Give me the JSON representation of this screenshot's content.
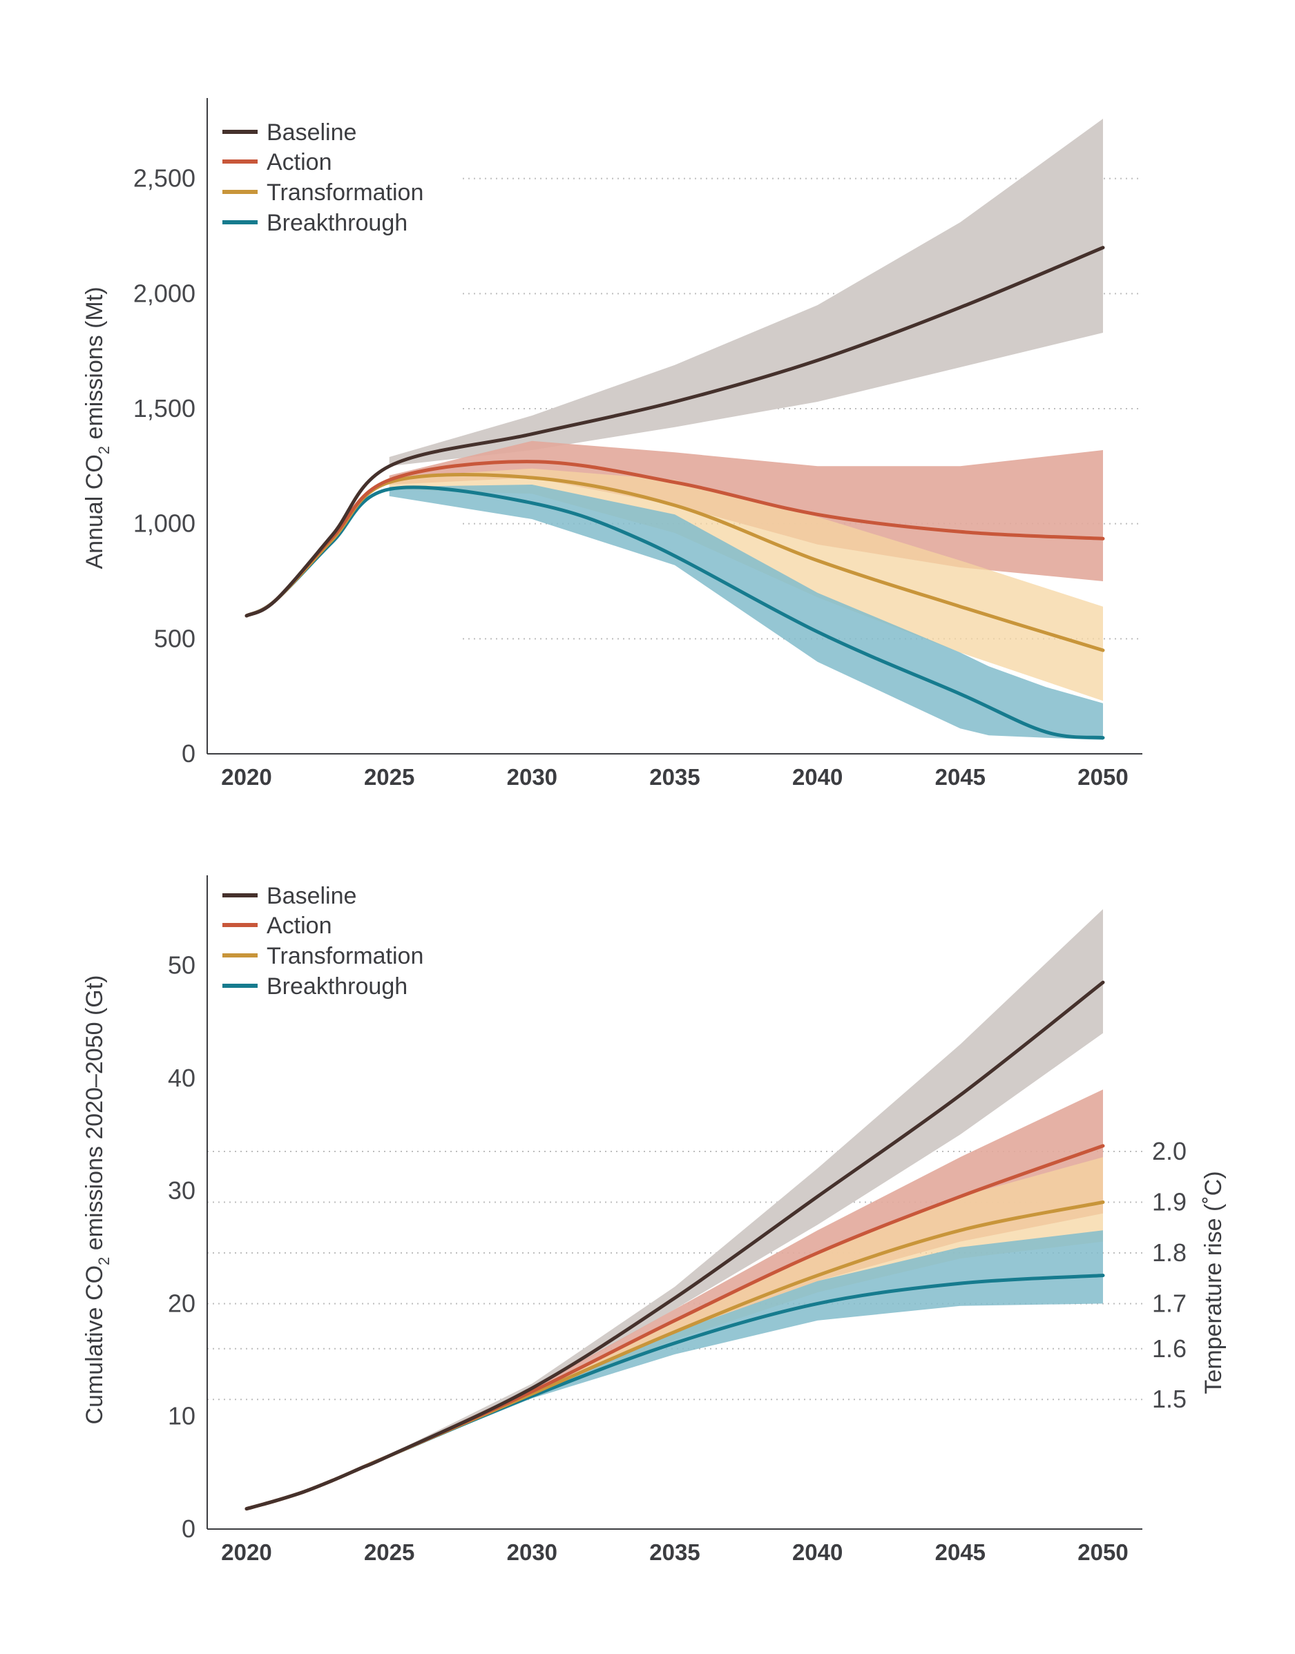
{
  "colors": {
    "baseline": "#45312c",
    "action": "#c8573a",
    "transformation": "#c8953a",
    "breakthrough": "#167b8e",
    "baseline_band": "#d2ccc9",
    "action_band": "#e2a89b",
    "transformation_band": "#f5d6a1",
    "breakthrough_band": "#83bccb",
    "overlap_band": "#e9ab6e"
  },
  "chart_data": [
    {
      "type": "line",
      "subtype": "line-with-uncertainty-bands",
      "title": "",
      "ylabel": "Annual CO2 emissions (Mt)",
      "ylabel_parts": {
        "pre": "Annual CO",
        "sub": "2",
        "post": " emissions (Mt)"
      },
      "xlabel": "",
      "xlim": [
        2020,
        2050
      ],
      "ylim": [
        0,
        2850
      ],
      "xticks": [
        "2020",
        "2025",
        "2030",
        "2035",
        "2040",
        "2045",
        "2050"
      ],
      "yticks": [
        {
          "value": 0,
          "label": "0"
        },
        {
          "value": 500,
          "label": "500"
        },
        {
          "value": 1000,
          "label": "1,000"
        },
        {
          "value": 1500,
          "label": "1,500"
        },
        {
          "value": 2000,
          "label": "2,000"
        },
        {
          "value": 2500,
          "label": "2,500"
        }
      ],
      "gridlines_y": [
        500,
        1000,
        1500,
        2000,
        2500
      ],
      "legend_position": "top-left",
      "series": [
        {
          "name": "Baseline",
          "key": "baseline",
          "x": [
            2020,
            2021,
            2023,
            2025,
            2030,
            2035,
            2040,
            2045,
            2050
          ],
          "values": [
            600,
            665,
            950,
            1250,
            1390,
            1530,
            1710,
            1940,
            2200
          ],
          "band_x": [
            2025,
            2030,
            2035,
            2040,
            2045,
            2050
          ],
          "band_low": [
            1250,
            1320,
            1420,
            1530,
            1680,
            1830
          ],
          "band_high": [
            1290,
            1470,
            1690,
            1950,
            2310,
            2760
          ]
        },
        {
          "name": "Action",
          "key": "action",
          "x": [
            2020,
            2021,
            2023,
            2025,
            2030,
            2035,
            2040,
            2045,
            2050
          ],
          "values": [
            600,
            665,
            940,
            1190,
            1270,
            1180,
            1040,
            965,
            935
          ],
          "band_x": [
            2025,
            2030,
            2035,
            2040,
            2045,
            2050
          ],
          "band_low": [
            1170,
            1200,
            1080,
            910,
            810,
            750
          ],
          "band_high": [
            1210,
            1360,
            1310,
            1250,
            1250,
            1320
          ]
        },
        {
          "name": "Transformation",
          "key": "transformation",
          "x": [
            2020,
            2021,
            2023,
            2025,
            2030,
            2035,
            2040,
            2045,
            2050
          ],
          "values": [
            600,
            665,
            930,
            1180,
            1200,
            1080,
            840,
            640,
            450
          ],
          "band_x": [
            2025,
            2030,
            2035,
            2040,
            2045,
            2050
          ],
          "band_low": [
            1150,
            1130,
            960,
            680,
            440,
            230
          ],
          "band_high": [
            1200,
            1240,
            1190,
            1030,
            840,
            640
          ]
        },
        {
          "name": "Breakthrough",
          "key": "breakthrough",
          "x": [
            2020,
            2021,
            2023,
            2025,
            2030,
            2034,
            2040,
            2045,
            2048,
            2050
          ],
          "values": [
            600,
            665,
            920,
            1150,
            1090,
            920,
            530,
            260,
            95,
            70
          ],
          "band_x": [
            2025,
            2030,
            2035,
            2040,
            2045,
            2046,
            2048,
            2050
          ],
          "band_low": [
            1120,
            1020,
            820,
            400,
            110,
            80,
            70,
            60
          ],
          "band_high": [
            1160,
            1170,
            1040,
            700,
            440,
            380,
            290,
            220
          ]
        }
      ]
    },
    {
      "type": "line",
      "subtype": "line-with-uncertainty-bands",
      "title": "",
      "ylabel": "Cumulative CO2 emissions 2020–2050 (Gt)",
      "ylabel_parts": {
        "pre": "Cumulative CO",
        "sub": "2",
        "post": " emissions 2020–2050 (Gt)"
      },
      "y2label": "Temperature rise (˚C)",
      "xlabel": "",
      "xlim": [
        2020,
        2050
      ],
      "ylim": [
        0,
        58
      ],
      "xticks": [
        "2020",
        "2025",
        "2030",
        "2035",
        "2040",
        "2045",
        "2050"
      ],
      "yticks": [
        {
          "value": 0,
          "label": "0"
        },
        {
          "value": 10,
          "label": "10"
        },
        {
          "value": 20,
          "label": "20"
        },
        {
          "value": 30,
          "label": "30"
        },
        {
          "value": 40,
          "label": "40"
        },
        {
          "value": 50,
          "label": "50"
        }
      ],
      "y2ticks": [
        {
          "value": 11.5,
          "label": "1.5"
        },
        {
          "value": 16.0,
          "label": "1.6"
        },
        {
          "value": 20.0,
          "label": "1.7"
        },
        {
          "value": 24.5,
          "label": "1.8"
        },
        {
          "value": 29.0,
          "label": "1.9"
        },
        {
          "value": 33.5,
          "label": "2.0"
        }
      ],
      "gridlines_y": [
        11.5,
        16.0,
        20.0,
        24.5,
        29.0,
        33.5
      ],
      "legend_position": "top-left",
      "series": [
        {
          "name": "Baseline",
          "key": "baseline",
          "x": [
            2020,
            2021,
            2022,
            2023,
            2024,
            2025,
            2030,
            2035,
            2040,
            2045,
            2050
          ],
          "values": [
            1.8,
            2.5,
            3.3,
            4.3,
            5.4,
            6.5,
            12.5,
            20.5,
            29.5,
            38.5,
            48.5
          ],
          "band_x": [
            2025,
            2030,
            2035,
            2040,
            2045,
            2050
          ],
          "band_low": [
            6.5,
            12.3,
            19.5,
            27.0,
            35.0,
            44.0
          ],
          "band_high": [
            6.6,
            12.9,
            21.5,
            32.0,
            43.0,
            55.0
          ]
        },
        {
          "name": "Action",
          "key": "action",
          "x": [
            2020,
            2021,
            2022,
            2023,
            2024,
            2025,
            2030,
            2035,
            2040,
            2045,
            2050
          ],
          "values": [
            1.8,
            2.5,
            3.3,
            4.3,
            5.4,
            6.5,
            12.2,
            18.5,
            24.5,
            29.5,
            34.0
          ],
          "band_x": [
            2025,
            2030,
            2035,
            2040,
            2045,
            2050
          ],
          "band_low": [
            6.5,
            12.0,
            17.5,
            22.0,
            25.5,
            28.0
          ],
          "band_high": [
            6.6,
            12.5,
            19.5,
            26.5,
            33.0,
            39.0
          ]
        },
        {
          "name": "Transformation",
          "key": "transformation",
          "x": [
            2020,
            2021,
            2022,
            2023,
            2024,
            2025,
            2030,
            2035,
            2040,
            2045,
            2050
          ],
          "values": [
            1.8,
            2.5,
            3.3,
            4.3,
            5.4,
            6.5,
            12.0,
            17.5,
            22.5,
            26.5,
            29.0
          ],
          "band_x": [
            2025,
            2030,
            2035,
            2040,
            2045,
            2050
          ],
          "band_low": [
            6.5,
            11.8,
            16.8,
            21.0,
            24.0,
            25.5
          ],
          "band_high": [
            6.6,
            12.3,
            18.5,
            24.5,
            29.5,
            33.0
          ]
        },
        {
          "name": "Breakthrough",
          "key": "breakthrough",
          "x": [
            2020,
            2021,
            2022,
            2023,
            2024,
            2025,
            2030,
            2035,
            2040,
            2045,
            2050
          ],
          "values": [
            1.8,
            2.5,
            3.3,
            4.3,
            5.4,
            6.5,
            11.8,
            16.5,
            20.0,
            21.8,
            22.5
          ],
          "band_x": [
            2025,
            2030,
            2035,
            2040,
            2045,
            2050
          ],
          "band_low": [
            6.5,
            11.6,
            15.5,
            18.5,
            19.8,
            20.0
          ],
          "band_high": [
            6.6,
            12.2,
            17.5,
            22.0,
            25.0,
            26.5
          ]
        }
      ]
    }
  ]
}
